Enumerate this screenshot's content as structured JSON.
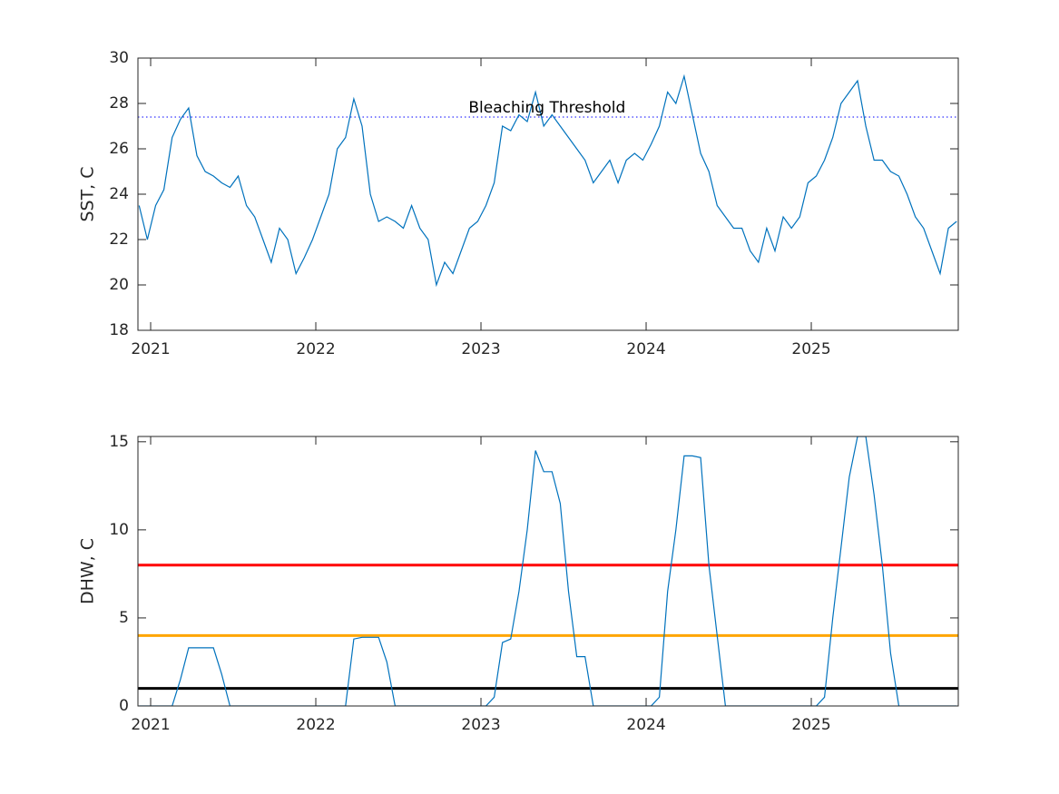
{
  "chart_data": [
    {
      "type": "line",
      "ylabel": "SST, C",
      "color": "#0072bd",
      "x": [
        2020.93,
        2020.98,
        2021.03,
        2021.08,
        2021.13,
        2021.18,
        2021.23,
        2021.28,
        2021.33,
        2021.38,
        2021.43,
        2021.48,
        2021.53,
        2021.58,
        2021.63,
        2021.68,
        2021.73,
        2021.78,
        2021.83,
        2021.88,
        2021.93,
        2021.98,
        2022.03,
        2022.08,
        2022.13,
        2022.18,
        2022.23,
        2022.28,
        2022.33,
        2022.38,
        2022.43,
        2022.48,
        2022.53,
        2022.58,
        2022.63,
        2022.68,
        2022.73,
        2022.78,
        2022.83,
        2022.88,
        2022.93,
        2022.98,
        2023.03,
        2023.08,
        2023.13,
        2023.18,
        2023.23,
        2023.28,
        2023.33,
        2023.38,
        2023.43,
        2023.48,
        2023.53,
        2023.58,
        2023.63,
        2023.68,
        2023.73,
        2023.78,
        2023.83,
        2023.88,
        2023.93,
        2023.98,
        2024.03,
        2024.08,
        2024.13,
        2024.18,
        2024.23,
        2024.28,
        2024.33,
        2024.38,
        2024.43,
        2024.48,
        2024.53,
        2024.58,
        2024.63,
        2024.68,
        2024.73,
        2024.78,
        2024.83,
        2024.88,
        2024.93,
        2024.98,
        2025.03,
        2025.08,
        2025.13,
        2025.18,
        2025.23,
        2025.28,
        2025.33,
        2025.38,
        2025.43,
        2025.48,
        2025.53,
        2025.58,
        2025.63,
        2025.68,
        2025.73,
        2025.78,
        2025.83,
        2025.88
      ],
      "values": [
        23.5,
        22.0,
        23.5,
        24.2,
        26.5,
        27.3,
        27.8,
        25.7,
        25.0,
        24.8,
        24.5,
        24.3,
        24.8,
        23.5,
        23.0,
        22.0,
        21.0,
        22.5,
        22.0,
        20.5,
        21.2,
        22.0,
        23.0,
        24.0,
        26.0,
        26.5,
        28.2,
        27.0,
        24.0,
        22.8,
        23.0,
        22.8,
        22.5,
        23.5,
        22.5,
        22.0,
        20.0,
        21.0,
        20.5,
        21.5,
        22.5,
        22.8,
        23.5,
        24.5,
        27.0,
        26.8,
        27.5,
        27.2,
        28.5,
        27.0,
        27.5,
        27.0,
        26.5,
        26.0,
        25.5,
        24.5,
        25.0,
        25.5,
        24.5,
        25.5,
        25.8,
        25.5,
        26.2,
        27.0,
        28.5,
        28.0,
        29.2,
        27.5,
        25.8,
        25.0,
        23.5,
        23.0,
        22.5,
        22.5,
        21.5,
        21.0,
        22.5,
        21.5,
        23.0,
        22.5,
        23.0,
        24.5,
        24.8,
        25.5,
        26.5,
        28.0,
        28.5,
        29.0,
        27.0,
        25.5,
        25.5,
        25.0,
        24.8,
        24.0,
        23.0,
        22.5,
        21.5,
        20.5,
        22.5,
        22.8
      ],
      "xlim": [
        2020.923,
        2025.89
      ],
      "xticks": [
        2021,
        2022,
        2023,
        2024,
        2025
      ],
      "ylim": [
        18,
        30
      ],
      "yticks": [
        18,
        20,
        22,
        24,
        26,
        28,
        30
      ],
      "hlines": [
        {
          "value": 27.4,
          "color": "#0000ff",
          "style": "dotted"
        }
      ],
      "annotations": [
        {
          "text": "Bleaching Threshold",
          "x": 2023.4,
          "y": 27.8
        }
      ]
    },
    {
      "type": "line",
      "ylabel": "DHW, C",
      "color": "#0072bd",
      "x": [
        2020.93,
        2020.98,
        2021.03,
        2021.08,
        2021.13,
        2021.18,
        2021.23,
        2021.28,
        2021.33,
        2021.38,
        2021.43,
        2021.48,
        2021.53,
        2021.58,
        2021.63,
        2021.68,
        2021.73,
        2021.78,
        2021.83,
        2021.88,
        2021.93,
        2021.98,
        2022.03,
        2022.08,
        2022.13,
        2022.18,
        2022.23,
        2022.28,
        2022.33,
        2022.38,
        2022.43,
        2022.48,
        2022.53,
        2022.58,
        2022.63,
        2022.68,
        2022.73,
        2022.78,
        2022.83,
        2022.88,
        2022.93,
        2022.98,
        2023.03,
        2023.08,
        2023.13,
        2023.18,
        2023.23,
        2023.28,
        2023.33,
        2023.38,
        2023.43,
        2023.48,
        2023.53,
        2023.58,
        2023.63,
        2023.68,
        2023.73,
        2023.78,
        2023.83,
        2023.88,
        2023.93,
        2023.98,
        2024.03,
        2024.08,
        2024.13,
        2024.18,
        2024.23,
        2024.28,
        2024.33,
        2024.38,
        2024.43,
        2024.48,
        2024.53,
        2024.58,
        2024.63,
        2024.68,
        2024.73,
        2024.78,
        2024.83,
        2024.88,
        2024.93,
        2024.98,
        2025.03,
        2025.08,
        2025.13,
        2025.18,
        2025.23,
        2025.28,
        2025.33,
        2025.38,
        2025.43,
        2025.48,
        2025.53,
        2025.58,
        2025.63,
        2025.68,
        2025.73,
        2025.78,
        2025.83,
        2025.88
      ],
      "values": [
        0,
        0,
        0,
        0,
        0,
        1.5,
        3.3,
        3.3,
        3.3,
        3.3,
        1.8,
        0,
        0,
        0,
        0,
        0,
        0,
        0,
        0,
        0,
        0,
        0,
        0,
        0,
        0,
        0,
        3.8,
        3.9,
        3.9,
        3.9,
        2.5,
        0,
        0,
        0,
        0,
        0,
        0,
        0,
        0,
        0,
        0,
        0,
        0,
        0.5,
        3.6,
        3.8,
        6.5,
        10,
        14.5,
        13.3,
        13.3,
        11.5,
        6.5,
        2.8,
        2.8,
        0,
        0,
        0,
        0,
        0,
        0,
        0,
        0,
        0.5,
        6.5,
        10,
        14.2,
        14.2,
        14.1,
        8,
        4,
        0,
        0,
        0,
        0,
        0,
        0,
        0,
        0,
        0,
        0,
        0,
        0,
        0.5,
        5,
        9,
        13,
        15.3,
        15.3,
        12,
        8,
        3,
        0,
        0,
        0,
        0,
        0,
        0,
        0,
        0
      ],
      "xlim": [
        2020.923,
        2025.89
      ],
      "xticks": [
        2021,
        2022,
        2023,
        2024,
        2025
      ],
      "ylim": [
        0,
        15.3
      ],
      "yticks": [
        0,
        5,
        10,
        15
      ],
      "hlines": [
        {
          "value": 1,
          "color": "#000000",
          "style": "solid"
        },
        {
          "value": 4,
          "color": "#ffa500",
          "style": "solid"
        },
        {
          "value": 8,
          "color": "#ff0000",
          "style": "solid"
        }
      ]
    }
  ]
}
